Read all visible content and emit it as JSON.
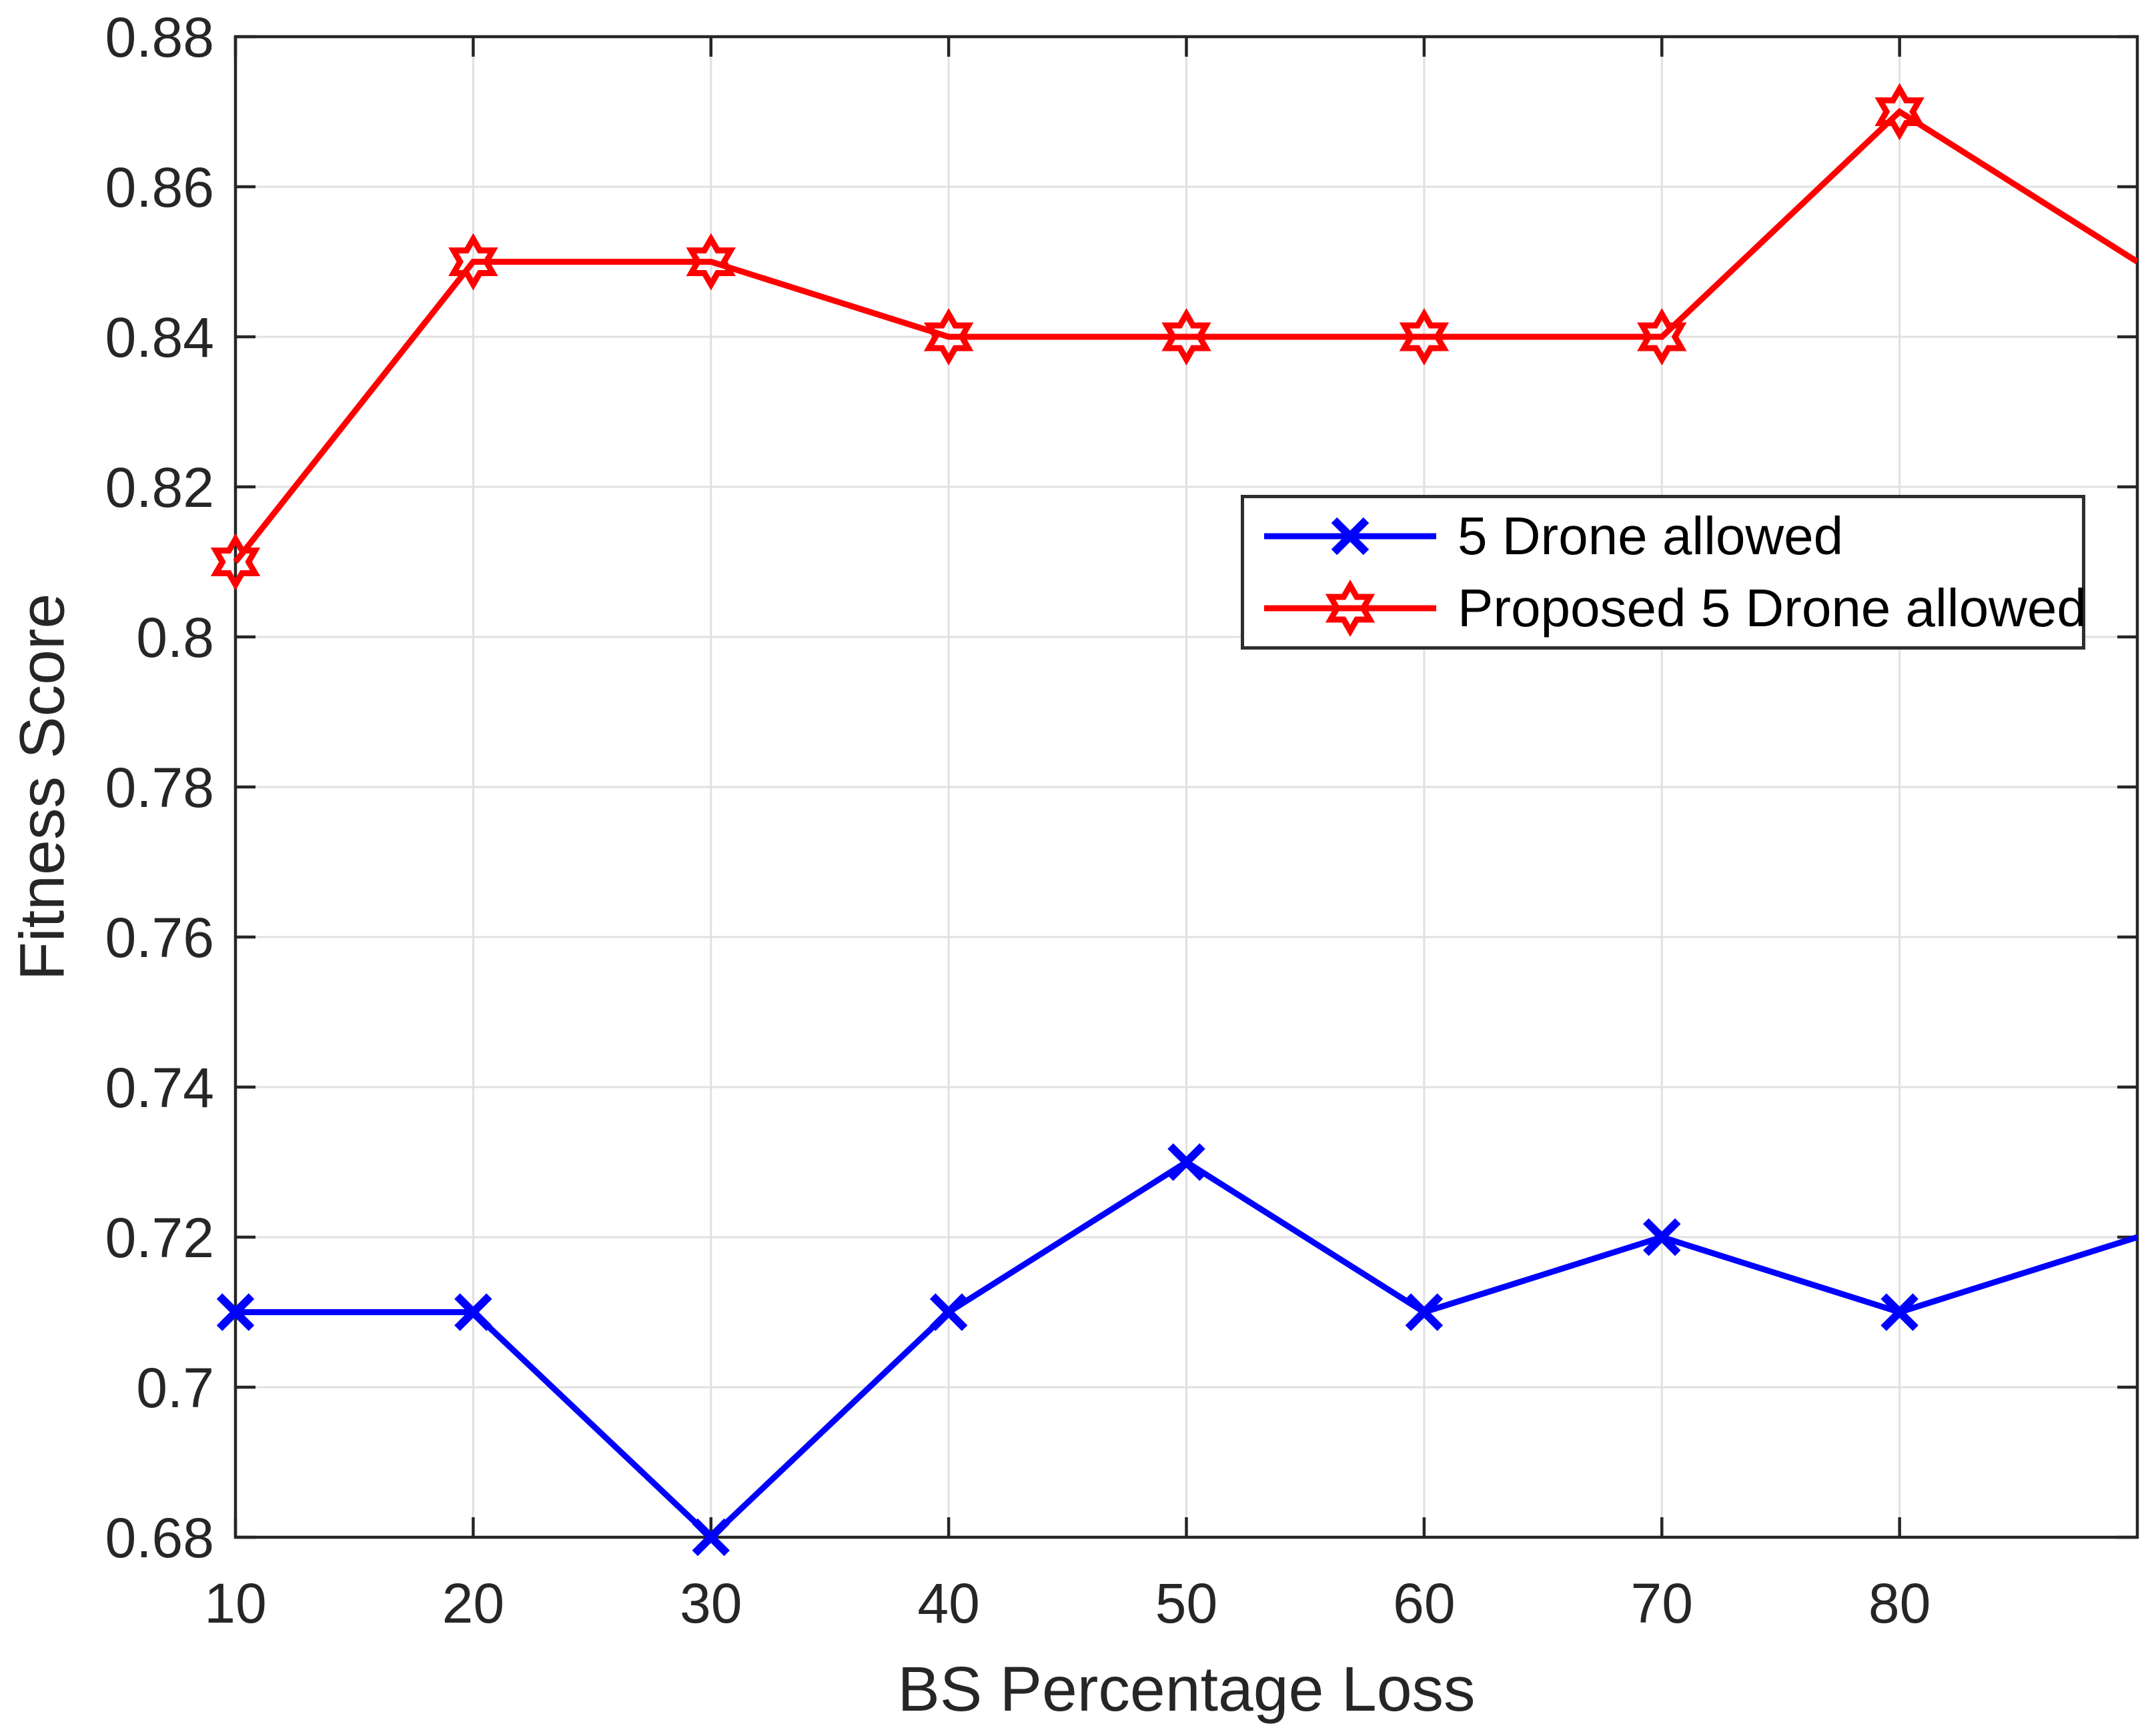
{
  "figure": {
    "background": "#FFFFFF",
    "axis_color": "#262626",
    "grid_color": "#E0E0E0",
    "tick_label_color": "#262626",
    "legend_border_color": "#2E2E2E",
    "legend_text_color": "#000000"
  },
  "chart_data": {
    "type": "line",
    "title": "",
    "xlabel": "BS Percentage Loss",
    "ylabel": "Fitness Score",
    "xlim": [
      10,
      90
    ],
    "ylim": [
      0.68,
      0.88
    ],
    "xticks": [
      10,
      20,
      30,
      40,
      50,
      60,
      70,
      80
    ],
    "yticks": [
      0.68,
      0.7,
      0.72,
      0.74,
      0.76,
      0.78,
      0.8,
      0.82,
      0.84,
      0.86,
      0.88
    ],
    "grid": true,
    "legend_position": "upper-right-inside",
    "markers_visible_through_x": 80,
    "x": [
      10,
      20,
      30,
      40,
      50,
      60,
      70,
      80,
      90
    ],
    "series": [
      {
        "name": "5 Drone allowed",
        "color": "#0000FF",
        "marker": "x",
        "values": [
          0.71,
          0.71,
          0.68,
          0.71,
          0.73,
          0.71,
          0.72,
          0.71,
          0.72
        ]
      },
      {
        "name": "Proposed 5 Drone allowed",
        "color": "#FF0000",
        "marker": "hexagram",
        "values": [
          0.81,
          0.85,
          0.85,
          0.84,
          0.84,
          0.84,
          0.84,
          0.87,
          0.85
        ]
      }
    ]
  }
}
